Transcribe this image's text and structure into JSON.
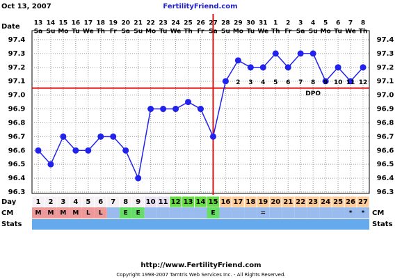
{
  "chart_data": {
    "type": "line",
    "date": "Oct 13, 2007",
    "site": "FertilityFriend.com",
    "row_labels": {
      "date": "Date",
      "day": "Day",
      "cm": "CM",
      "stats": "Stats"
    },
    "dates": [
      "13",
      "14",
      "15",
      "16",
      "17",
      "18",
      "19",
      "20",
      "21",
      "22",
      "23",
      "24",
      "25",
      "26",
      "27",
      "28",
      "29",
      "30",
      "31",
      "1",
      "2",
      "3",
      "4",
      "5",
      "6",
      "7",
      "8"
    ],
    "weekdays": [
      "Sa",
      "Su",
      "Mo",
      "Tu",
      "We",
      "Th",
      "Fr",
      "Sa",
      "Su",
      "Mo",
      "Tu",
      "We",
      "Th",
      "Fr",
      "Sa",
      "Su",
      "Mo",
      "Tu",
      "We",
      "Th",
      "Fr",
      "Sa",
      "Su",
      "Mo",
      "Tu",
      "We",
      "Th"
    ],
    "x": [
      1,
      2,
      3,
      4,
      5,
      6,
      7,
      8,
      9,
      10,
      11,
      12,
      13,
      14,
      15,
      16,
      17,
      18,
      19,
      20,
      21,
      22,
      23,
      24,
      25,
      26,
      27
    ],
    "values": [
      96.6,
      96.5,
      96.7,
      96.6,
      96.6,
      96.7,
      96.7,
      96.6,
      96.4,
      96.9,
      96.9,
      96.9,
      96.95,
      96.9,
      96.7,
      97.1,
      97.25,
      97.2,
      97.2,
      97.3,
      97.2,
      97.3,
      97.3,
      97.1,
      97.2,
      97.1,
      97.2
    ],
    "color": "#2222ee",
    "ylim": [
      96.3,
      97.4
    ],
    "yticks": [
      96.3,
      96.4,
      96.5,
      96.6,
      96.7,
      96.8,
      96.9,
      {
        "value": 97,
        "label": "97.0"
      },
      97.1,
      97.2,
      97.3,
      97.4
    ],
    "grid": true,
    "coverline": 97.05,
    "ovulation_day": 15,
    "line_color": "#dd1111",
    "dpo_title": "DPO",
    "dpo": [
      null,
      null,
      null,
      null,
      null,
      null,
      null,
      null,
      null,
      null,
      null,
      null,
      null,
      null,
      null,
      null,
      "2",
      "3",
      "4",
      "5",
      "6",
      "7",
      "8",
      "9",
      "10",
      "11",
      "12"
    ],
    "day_colors": [
      "#f4f0f4",
      "#f4f0f4",
      "#f4f0f4",
      "#f4f0f4",
      "#f4f0f4",
      "#f4f0f4",
      "#f4f0f4",
      "#f4f0f4",
      "#f4f0f4",
      "#e8e0f0",
      "#e8e0f0",
      "#66dd44",
      "#66dd44",
      "#66dd44",
      "#66dd44",
      "#ffcc99",
      "#ffcc99",
      "#ffcc99",
      "#ffcc99",
      "#ffcc99",
      "#ffcc99",
      "#ffcc99",
      "#ffcc99",
      "#ffcc99",
      "#ffcc99",
      "#ffcc99",
      "#ffcc99"
    ],
    "cm": [
      "M",
      "M",
      "M",
      "M",
      "L",
      "L",
      null,
      "E",
      "E",
      null,
      null,
      null,
      null,
      null,
      "E",
      null,
      null,
      null,
      "=",
      null,
      null,
      null,
      null,
      null,
      null,
      "*",
      "*"
    ],
    "cm_colors": [
      "#ee9999",
      "#ee9999",
      "#ee9999",
      "#ee9999",
      "#ee9999",
      "#ee9999",
      "#99bbee",
      "#66dd66",
      "#66dd66",
      "#99bbee",
      "#99bbee",
      "#99bbee",
      "#99bbee",
      "#99bbee",
      "#66dd66",
      "#99bbee",
      "#99bbee",
      "#99bbee",
      "#99bbee",
      "#99bbee",
      "#99bbee",
      "#99bbee",
      "#99bbee",
      "#99bbee",
      "#99bbee",
      "#99bbee",
      "#99bbee"
    ],
    "stats_color": "#66aaee",
    "footer_url": "http://www.FertilityFriend.com",
    "copyright": "Copyright 1998-2007 Tamtris Web Services Inc. - All Rights Reserved."
  }
}
